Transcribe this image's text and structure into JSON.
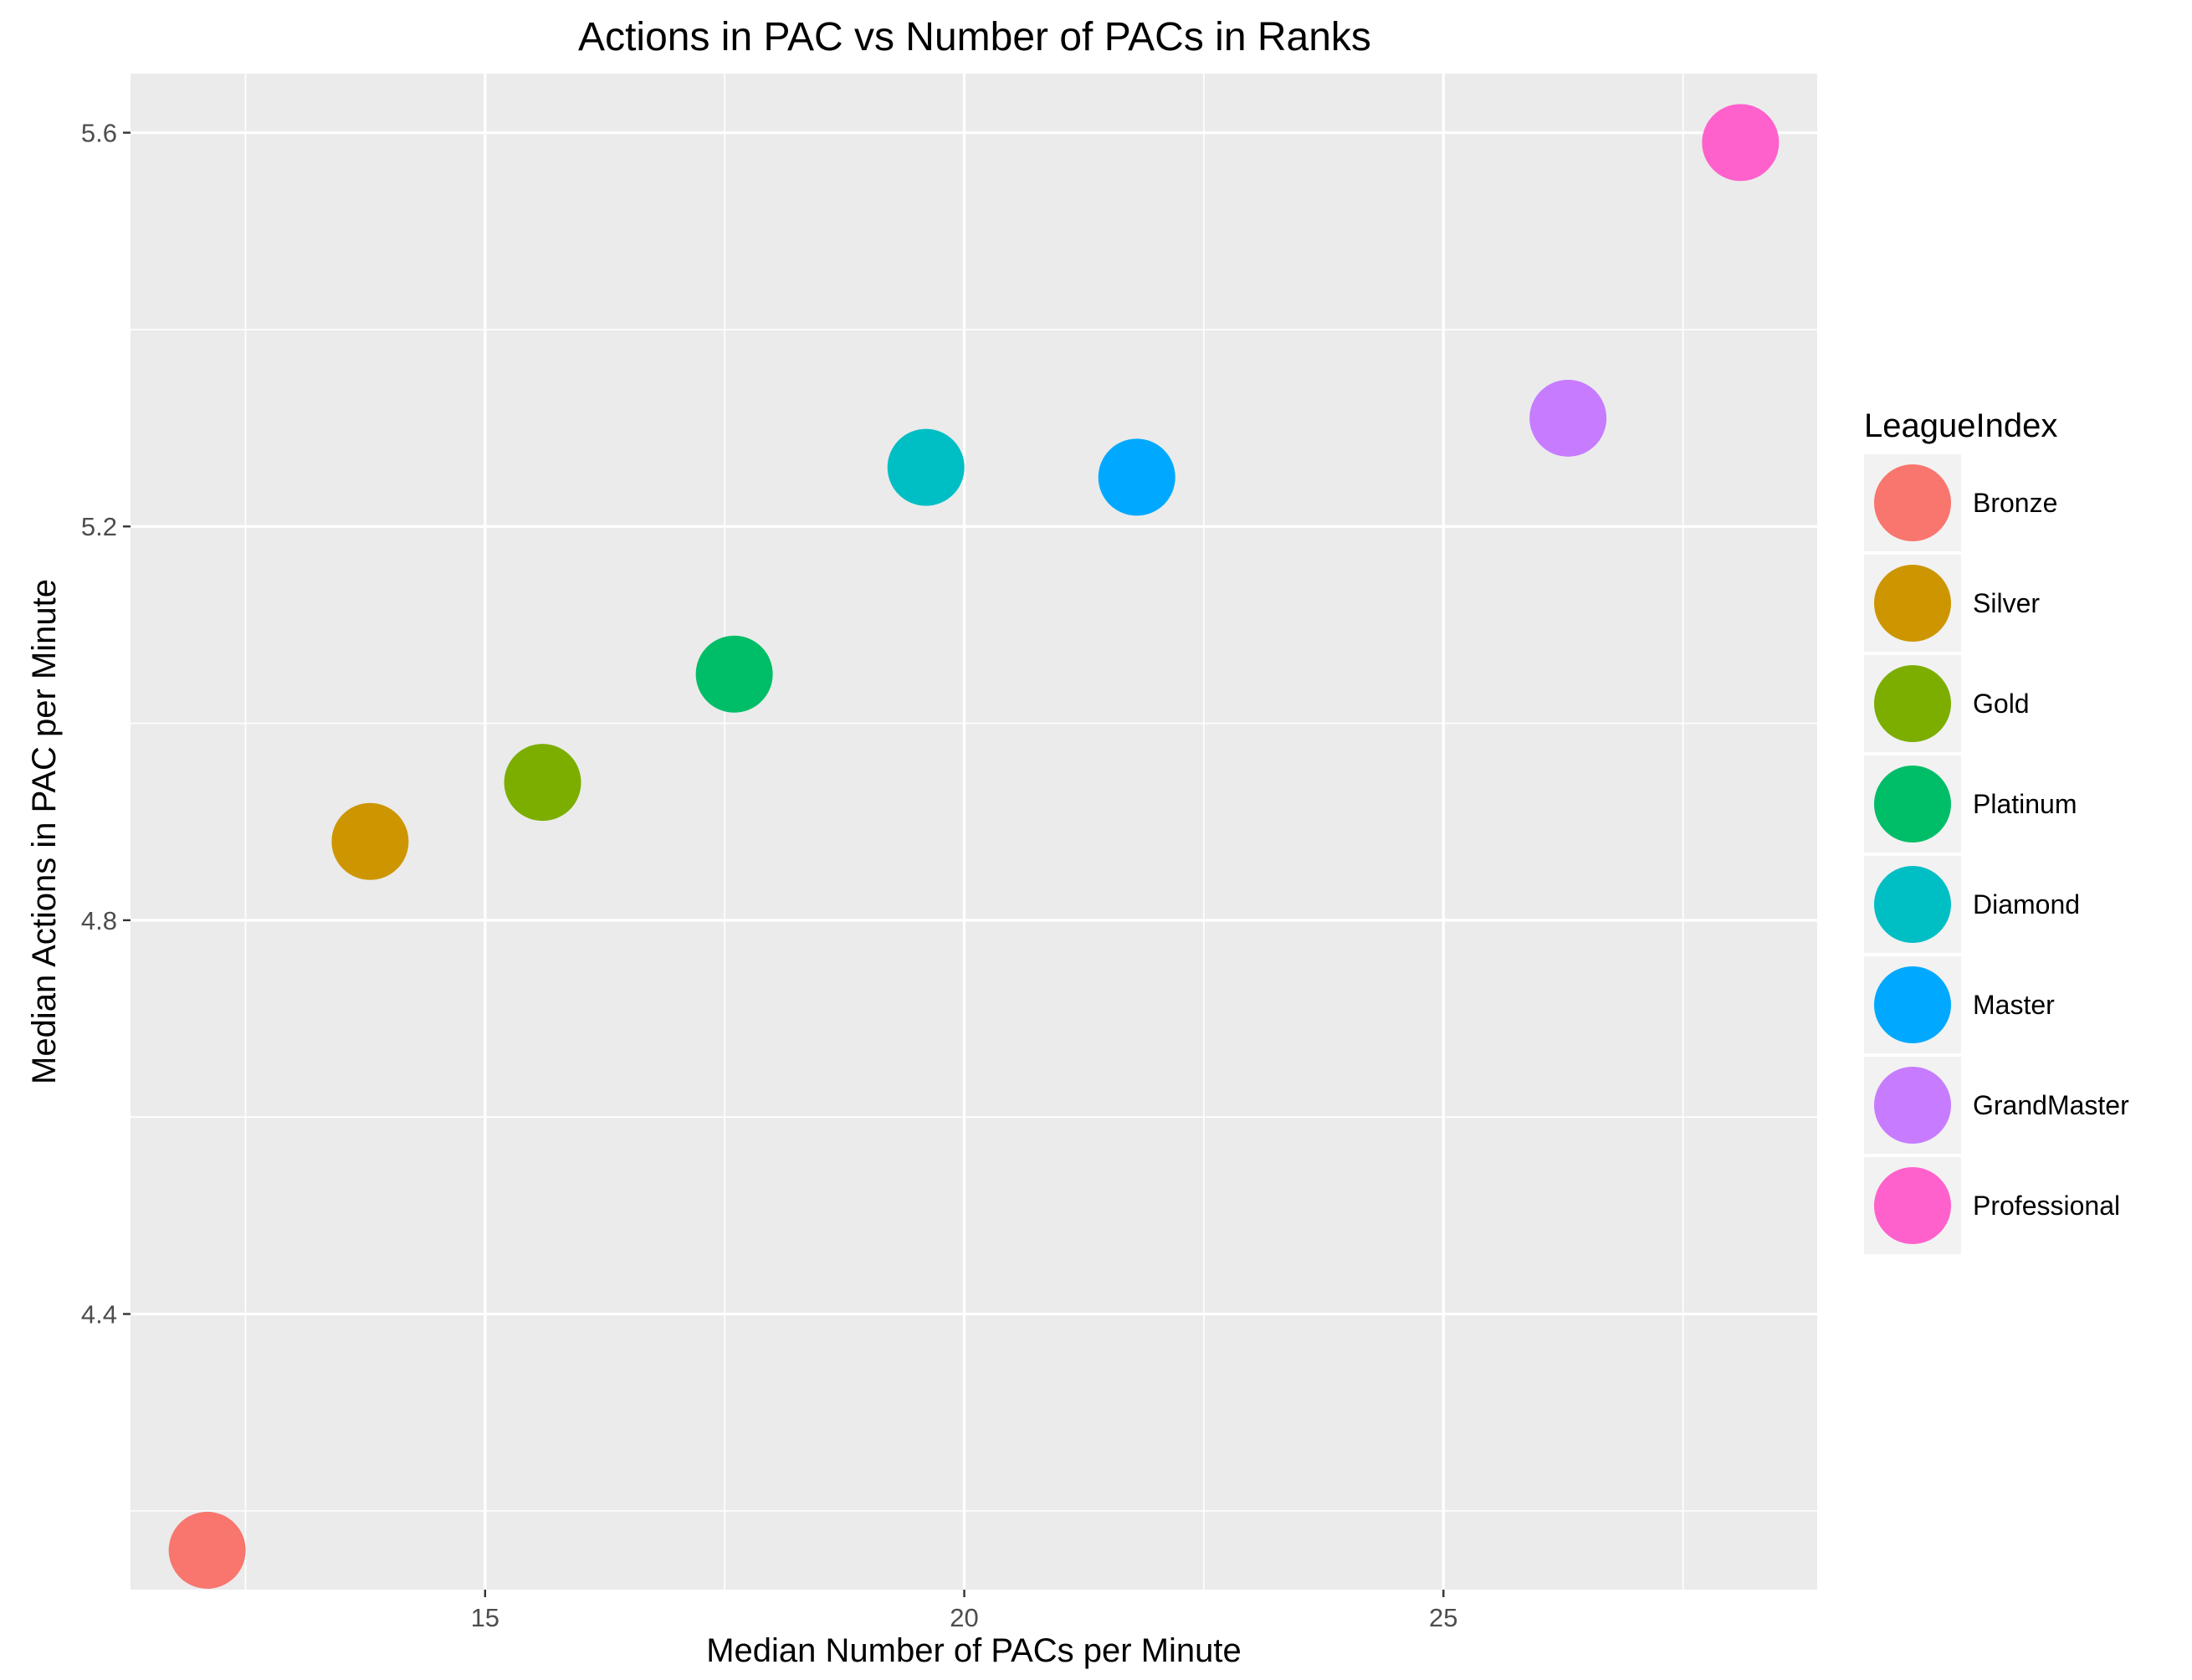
{
  "chart_data": {
    "type": "scatter",
    "title": "Actions in PAC vs Number of PACs in Ranks",
    "xlabel": "Median Number of PACs per Minute",
    "ylabel": "Median Actions in PAC per Minute",
    "xlim": [
      11.3,
      28.9
    ],
    "ylim": [
      4.12,
      5.66
    ],
    "x_ticks": [
      15,
      20,
      25
    ],
    "y_ticks": [
      4.4,
      4.8,
      5.2,
      5.6
    ],
    "x_tick_labels": [
      "15",
      "20",
      "25"
    ],
    "y_tick_labels": [
      "4.4",
      "4.8",
      "5.2",
      "5.6"
    ],
    "grid": true,
    "legend": {
      "title": "LeagueIndex",
      "position": "right"
    },
    "points": [
      {
        "label": "Bronze",
        "x": 12.1,
        "y": 4.16,
        "color": "#F8766D"
      },
      {
        "label": "Silver",
        "x": 13.8,
        "y": 4.88,
        "color": "#CD9600"
      },
      {
        "label": "Gold",
        "x": 15.6,
        "y": 4.94,
        "color": "#7CAE00"
      },
      {
        "label": "Platinum",
        "x": 17.6,
        "y": 5.05,
        "color": "#00BE67"
      },
      {
        "label": "Diamond",
        "x": 19.6,
        "y": 5.26,
        "color": "#00BFC4"
      },
      {
        "label": "Master",
        "x": 21.8,
        "y": 5.25,
        "color": "#00A9FF"
      },
      {
        "label": "GrandMaster",
        "x": 26.3,
        "y": 5.31,
        "color": "#C77CFF"
      },
      {
        "label": "Professional",
        "x": 28.1,
        "y": 5.59,
        "color": "#FF61CC"
      }
    ]
  }
}
